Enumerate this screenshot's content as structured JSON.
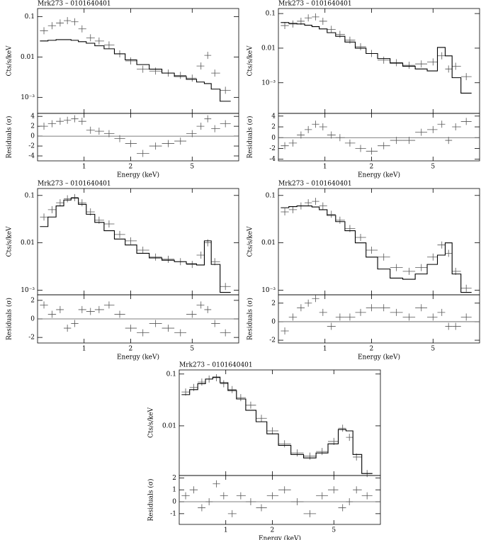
{
  "chart_data": [
    {
      "type": "spectrum",
      "title": "Mrk273 – 0101640401",
      "ylabel": "Cts/s/keV",
      "xscale": "log",
      "yscale": "log",
      "x": [
        0.55,
        0.62,
        0.7,
        0.78,
        0.87,
        0.97,
        1.1,
        1.25,
        1.45,
        1.7,
        2.0,
        2.4,
        2.9,
        3.5,
        4.2,
        5.0,
        5.7,
        6.3,
        7.0,
        8.2
      ],
      "series": [
        {
          "style": "points",
          "color": "#555555",
          "values": [
            0.045,
            0.06,
            0.07,
            0.08,
            0.075,
            0.05,
            0.03,
            0.025,
            0.02,
            0.012,
            0.008,
            0.005,
            0.0045,
            0.004,
            0.0035,
            0.003,
            0.006,
            0.011,
            0.004,
            0.0015
          ]
        },
        {
          "style": "steps",
          "color": "#000000",
          "values": [
            0.025,
            0.026,
            0.027,
            0.027,
            0.026,
            0.024,
            0.022,
            0.019,
            0.016,
            0.012,
            0.0085,
            0.0065,
            0.005,
            0.004,
            0.0033,
            0.0028,
            0.0024,
            0.0022,
            0.0016,
            0.0008
          ]
        }
      ],
      "xlim": [
        0.5,
        10
      ],
      "ylim": [
        0.0004,
        0.16
      ],
      "xticks": [
        1,
        2,
        5
      ],
      "yticks": [
        {
          "value": 0.001,
          "label": "10⁻³"
        },
        0.01,
        0.1
      ]
    },
    {
      "type": "residuals",
      "ylabel": "Residuals (σ)",
      "xlabel": "Energy (keV)",
      "xscale": "log",
      "yscale": "linear",
      "x": [
        0.55,
        0.62,
        0.7,
        0.78,
        0.87,
        0.97,
        1.1,
        1.25,
        1.45,
        1.7,
        2.0,
        2.4,
        2.9,
        3.5,
        4.2,
        5.0,
        5.7,
        6.3,
        7.0,
        8.2
      ],
      "series": [
        {
          "style": "points",
          "color": "#555555",
          "values": [
            2,
            2.5,
            3,
            3.2,
            3.5,
            3,
            1.2,
            1,
            0.5,
            -0.5,
            -1.5,
            -3.5,
            -2,
            -1.5,
            -1,
            0.5,
            2,
            3.5,
            1.5,
            2.5
          ]
        }
      ],
      "xlim": [
        0.5,
        10
      ],
      "ylim": [
        -5,
        4.6
      ],
      "xticks": [
        1,
        2,
        5
      ],
      "yticks": [
        -4,
        -2,
        0,
        2,
        4
      ]
    },
    {
      "type": "spectrum",
      "title": "Mrk273 – 0101640401",
      "ylabel": "Cts/s/keV",
      "xscale": "log",
      "yscale": "log",
      "x": [
        0.55,
        0.62,
        0.7,
        0.78,
        0.87,
        0.97,
        1.1,
        1.25,
        1.45,
        1.7,
        2.0,
        2.4,
        2.9,
        3.5,
        4.2,
        5.0,
        5.7,
        6.3,
        7.0,
        8.2
      ],
      "series": [
        {
          "style": "points",
          "color": "#555555",
          "values": [
            0.045,
            0.05,
            0.06,
            0.075,
            0.08,
            0.06,
            0.035,
            0.025,
            0.017,
            0.011,
            0.007,
            0.0045,
            0.0038,
            0.0032,
            0.0035,
            0.004,
            0.006,
            0.0025,
            0.003,
            0.0015
          ]
        },
        {
          "style": "steps",
          "color": "#000000",
          "values": [
            0.055,
            0.052,
            0.05,
            0.046,
            0.042,
            0.036,
            0.028,
            0.022,
            0.015,
            0.01,
            0.007,
            0.005,
            0.0037,
            0.003,
            0.0025,
            0.0022,
            0.0105,
            0.006,
            0.0014,
            0.0005
          ]
        }
      ],
      "xlim": [
        0.5,
        10
      ],
      "ylim": [
        0.00013,
        0.14
      ],
      "xticks": [
        1,
        2,
        5
      ],
      "yticks": [
        {
          "value": 0.001,
          "label": "10⁻³"
        },
        0.01,
        0.1
      ]
    },
    {
      "type": "residuals",
      "ylabel": "Residuals (σ)",
      "xlabel": "Energy (keV)",
      "xscale": "log",
      "yscale": "linear",
      "x": [
        0.55,
        0.62,
        0.7,
        0.78,
        0.87,
        0.97,
        1.1,
        1.25,
        1.45,
        1.7,
        2.0,
        2.4,
        2.9,
        3.5,
        4.2,
        5.0,
        5.7,
        6.3,
        7.0,
        8.2
      ],
      "series": [
        {
          "style": "points",
          "color": "#555555",
          "values": [
            -1.5,
            -1,
            0.5,
            1.5,
            2.5,
            2,
            0.5,
            0,
            -1,
            -2,
            -2.5,
            -1.5,
            -0.5,
            -0.5,
            1,
            1.5,
            2.5,
            -0.5,
            2,
            3
          ]
        }
      ],
      "xlim": [
        0.5,
        10
      ],
      "ylim": [
        -4.3,
        4.5
      ],
      "xticks": [
        1,
        2,
        5
      ],
      "yticks": [
        -4,
        -2,
        0,
        2,
        4
      ]
    },
    {
      "type": "spectrum",
      "title": "Mrk273 – 0101640401",
      "ylabel": "Cts/s/keV",
      "xscale": "log",
      "yscale": "log",
      "x": [
        0.55,
        0.62,
        0.7,
        0.78,
        0.87,
        0.97,
        1.1,
        1.25,
        1.45,
        1.7,
        2.0,
        2.4,
        2.9,
        3.5,
        4.2,
        5.0,
        5.7,
        6.3,
        7.0,
        8.2
      ],
      "series": [
        {
          "style": "points",
          "color": "#555555",
          "values": [
            0.035,
            0.05,
            0.07,
            0.085,
            0.09,
            0.07,
            0.045,
            0.03,
            0.025,
            0.015,
            0.011,
            0.007,
            0.005,
            0.0045,
            0.004,
            0.0035,
            0.0055,
            0.01,
            0.004,
            0.0012
          ]
        },
        {
          "style": "steps",
          "color": "#000000",
          "values": [
            0.022,
            0.035,
            0.06,
            0.08,
            0.088,
            0.065,
            0.04,
            0.027,
            0.018,
            0.012,
            0.009,
            0.006,
            0.0048,
            0.0043,
            0.004,
            0.0036,
            0.0034,
            0.011,
            0.0035,
            0.0009
          ]
        }
      ],
      "xlim": [
        0.5,
        10
      ],
      "ylim": [
        0.0008,
        0.14
      ],
      "xticks": [
        1,
        2,
        5
      ],
      "yticks": [
        {
          "value": 0.001,
          "label": "10⁻³"
        },
        0.01,
        0.1
      ]
    },
    {
      "type": "residuals",
      "ylabel": "Residuals (σ)",
      "xlabel": "Energy (keV)",
      "xscale": "log",
      "yscale": "linear",
      "x": [
        0.55,
        0.62,
        0.7,
        0.78,
        0.87,
        0.97,
        1.1,
        1.25,
        1.45,
        1.7,
        2.0,
        2.4,
        2.9,
        3.5,
        4.2,
        5.0,
        5.7,
        6.3,
        7.0,
        8.2
      ],
      "series": [
        {
          "style": "points",
          "color": "#555555",
          "values": [
            1.5,
            0.5,
            1,
            -1,
            -0.5,
            1,
            0.8,
            1,
            1.5,
            0.5,
            -1,
            -1.5,
            -0.5,
            -1,
            -1.5,
            0.5,
            1.5,
            1,
            -0.5,
            -1.5
          ]
        }
      ],
      "xlim": [
        0.5,
        10
      ],
      "ylim": [
        -2.6,
        2.6
      ],
      "xticks": [
        1,
        2,
        5
      ],
      "yticks": [
        -2,
        0,
        2
      ]
    },
    {
      "type": "spectrum",
      "title": "Mrk273 – 0101640401",
      "ylabel": "Cts/s/keV",
      "xscale": "log",
      "yscale": "log",
      "x": [
        0.55,
        0.62,
        0.7,
        0.78,
        0.87,
        0.97,
        1.1,
        1.25,
        1.45,
        1.7,
        2.0,
        2.4,
        2.9,
        3.5,
        4.2,
        5.0,
        5.7,
        6.3,
        7.0,
        8.2
      ],
      "series": [
        {
          "style": "points",
          "color": "#555555",
          "values": [
            0.045,
            0.05,
            0.06,
            0.07,
            0.075,
            0.06,
            0.04,
            0.03,
            0.02,
            0.013,
            0.007,
            0.005,
            0.003,
            0.0025,
            0.003,
            0.005,
            0.009,
            0.006,
            0.0025,
            0.0011
          ]
        },
        {
          "style": "steps",
          "color": "#000000",
          "values": [
            0.055,
            0.058,
            0.06,
            0.06,
            0.057,
            0.05,
            0.038,
            0.028,
            0.018,
            0.01,
            0.005,
            0.0028,
            0.0018,
            0.0017,
            0.0022,
            0.0035,
            0.0055,
            0.01,
            0.0022,
            0.0009
          ]
        }
      ],
      "xlim": [
        0.5,
        10
      ],
      "ylim": [
        0.0008,
        0.14
      ],
      "xticks": [
        1,
        2,
        5
      ],
      "yticks": [
        {
          "value": 0.001,
          "label": "10⁻³"
        },
        0.01,
        0.1
      ]
    },
    {
      "type": "residuals",
      "ylabel": "Residuals (σ)",
      "xlabel": "Energy (keV)",
      "xscale": "log",
      "yscale": "linear",
      "x": [
        0.55,
        0.62,
        0.7,
        0.78,
        0.87,
        0.97,
        1.1,
        1.25,
        1.45,
        1.7,
        2.0,
        2.4,
        2.9,
        3.5,
        4.2,
        5.0,
        5.7,
        6.3,
        7.0,
        8.2
      ],
      "series": [
        {
          "style": "points",
          "color": "#555555",
          "values": [
            -1,
            0.5,
            1.5,
            2,
            2.5,
            1,
            -0.5,
            0.5,
            0.5,
            1,
            1.5,
            1.5,
            1,
            0.5,
            1.5,
            0.5,
            1,
            -0.5,
            -0.5,
            0.5
          ]
        }
      ],
      "xlim": [
        0.5,
        10
      ],
      "ylim": [
        -2.3,
        2.9
      ],
      "xticks": [
        1,
        2,
        5
      ],
      "yticks": [
        -2,
        0,
        2
      ]
    },
    {
      "type": "spectrum",
      "title": "Mrk273 – 0101640401",
      "ylabel": "Cts/s/keV",
      "xscale": "log",
      "yscale": "log",
      "x": [
        0.55,
        0.62,
        0.7,
        0.78,
        0.87,
        0.97,
        1.1,
        1.25,
        1.45,
        1.7,
        2.0,
        2.4,
        2.9,
        3.5,
        4.2,
        5.0,
        5.7,
        6.3,
        7.0,
        8.2
      ],
      "series": [
        {
          "style": "points",
          "color": "#555555",
          "values": [
            0.045,
            0.055,
            0.07,
            0.08,
            0.085,
            0.065,
            0.05,
            0.035,
            0.025,
            0.014,
            0.008,
            0.0045,
            0.003,
            0.0026,
            0.0032,
            0.005,
            0.009,
            0.006,
            0.0025,
            0.0012
          ]
        },
        {
          "style": "steps",
          "color": "#000000",
          "values": [
            0.04,
            0.05,
            0.065,
            0.08,
            0.087,
            0.068,
            0.048,
            0.033,
            0.02,
            0.012,
            0.007,
            0.0042,
            0.0028,
            0.0024,
            0.003,
            0.0045,
            0.0085,
            0.008,
            0.0028,
            0.0012
          ]
        }
      ],
      "xlim": [
        0.5,
        10
      ],
      "ylim": [
        0.0011,
        0.12
      ],
      "xticks": [
        1,
        2,
        5
      ],
      "yticks": [
        0.01,
        0.1
      ]
    },
    {
      "type": "residuals",
      "ylabel": "Residuals (σ)",
      "xlabel": "Energy (keV)",
      "xscale": "log",
      "yscale": "linear",
      "x": [
        0.55,
        0.62,
        0.7,
        0.78,
        0.87,
        0.97,
        1.1,
        1.25,
        1.45,
        1.7,
        2.0,
        2.4,
        2.9,
        3.5,
        4.2,
        5.0,
        5.7,
        6.3,
        7.0,
        8.2
      ],
      "series": [
        {
          "style": "points",
          "color": "#555555",
          "values": [
            0.5,
            1,
            -0.5,
            0,
            1.5,
            0.5,
            -1,
            0.5,
            0,
            -0.5,
            0.5,
            1,
            0,
            -1,
            0.5,
            1,
            -0.5,
            0,
            1,
            0.5
          ]
        }
      ],
      "xlim": [
        0.5,
        10
      ],
      "ylim": [
        -1.9,
        2.2
      ],
      "xticks": [
        1,
        2,
        5
      ],
      "yticks": [
        -1,
        0,
        1,
        2
      ]
    }
  ]
}
